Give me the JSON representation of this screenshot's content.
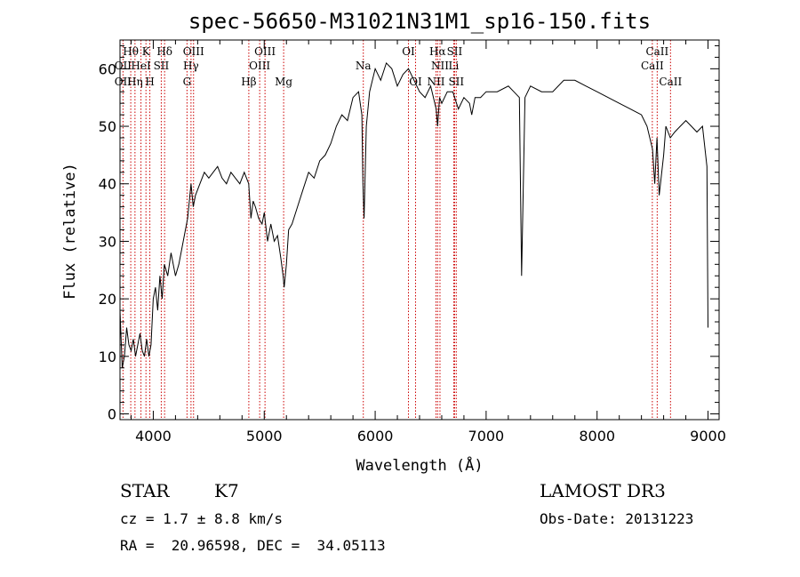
{
  "chart_data": {
    "type": "line",
    "title": "spec-56650-M31021N31M1_sp16-150.fits",
    "xlabel": "Wavelength (Å)",
    "ylabel": "Flux (relative)",
    "xlim": [
      3700,
      9100
    ],
    "ylim": [
      -1,
      65
    ],
    "x_ticks": [
      4000,
      5000,
      6000,
      7000,
      8000,
      9000
    ],
    "y_ticks": [
      0,
      10,
      20,
      30,
      40,
      50,
      60
    ],
    "grid": false,
    "series": [
      {
        "x": [
          3700,
          3720,
          3740,
          3760,
          3780,
          3800,
          3820,
          3840,
          3860,
          3880,
          3900,
          3920,
          3940,
          3960,
          3980,
          4000,
          4020,
          4040,
          4060,
          4080,
          4100,
          4130,
          4160,
          4200,
          4230,
          4260,
          4290,
          4310,
          4340,
          4360,
          4380,
          4420,
          4460,
          4500,
          4540,
          4580,
          4620,
          4660,
          4700,
          4740,
          4780,
          4820,
          4860,
          4880,
          4900,
          4920,
          4950,
          4980,
          5000,
          5030,
          5060,
          5090,
          5120,
          5150,
          5170,
          5180,
          5200,
          5220,
          5250,
          5300,
          5350,
          5400,
          5450,
          5500,
          5550,
          5600,
          5650,
          5700,
          5750,
          5800,
          5850,
          5880,
          5890,
          5900,
          5920,
          5950,
          6000,
          6050,
          6100,
          6150,
          6200,
          6250,
          6300,
          6350,
          6400,
          6450,
          6500,
          6550,
          6563,
          6580,
          6600,
          6650,
          6700,
          6750,
          6800,
          6850,
          6870,
          6900,
          6950,
          7000,
          7100,
          7200,
          7250,
          7300,
          7320,
          7350,
          7400,
          7500,
          7600,
          7700,
          7800,
          7900,
          8000,
          8100,
          8200,
          8300,
          8400,
          8450,
          8500,
          8520,
          8540,
          8560,
          8600,
          8620,
          8660,
          8700,
          8750,
          8800,
          8850,
          8900,
          8950,
          8990,
          9000
        ],
        "y": [
          18,
          8,
          10,
          15,
          12,
          11,
          13,
          10,
          12,
          14,
          11,
          10,
          13,
          10,
          12,
          20,
          22,
          18,
          24,
          20,
          26,
          24,
          28,
          24,
          26,
          29,
          32,
          34,
          40,
          36,
          38,
          40,
          42,
          41,
          42,
          43,
          41,
          40,
          42,
          41,
          40,
          42,
          40,
          34,
          37,
          36,
          34,
          33,
          35,
          30,
          33,
          30,
          31,
          27,
          24,
          22,
          26,
          32,
          33,
          36,
          39,
          42,
          41,
          44,
          45,
          47,
          50,
          52,
          51,
          55,
          56,
          52,
          40,
          34,
          50,
          56,
          60,
          58,
          61,
          60,
          57,
          59,
          60,
          58,
          56,
          55,
          57,
          53,
          50,
          55,
          54,
          56,
          56,
          53,
          55,
          54,
          52,
          55,
          55,
          56,
          56,
          57,
          56,
          55,
          24,
          55,
          57,
          56,
          56,
          58,
          58,
          57,
          56,
          55,
          54,
          53,
          52,
          50,
          46,
          40,
          48,
          38,
          45,
          50,
          48,
          49,
          50,
          51,
          50,
          49,
          50,
          43,
          15
        ]
      }
    ],
    "lines": [
      {
        "label": "Hθ",
        "x": 3797,
        "row": 0
      },
      {
        "label": "K",
        "x": 3934,
        "row": 0
      },
      {
        "label": "Hδ",
        "x": 4102,
        "row": 0
      },
      {
        "label": "OIII",
        "x": 4363,
        "row": 0
      },
      {
        "label": "OIII",
        "x": 5007,
        "row": 0
      },
      {
        "label": "OI",
        "x": 6300,
        "row": 0
      },
      {
        "label": "Hα",
        "x": 6563,
        "row": 0
      },
      {
        "label": "SII",
        "x": 6716,
        "row": 0
      },
      {
        "label": "CaII",
        "x": 8542,
        "row": 0
      },
      {
        "label": "OII",
        "x": 3727,
        "row": 1
      },
      {
        "label": "HeI",
        "x": 3889,
        "row": 1
      },
      {
        "label": "SII",
        "x": 4072,
        "row": 1
      },
      {
        "label": "Hγ",
        "x": 4340,
        "row": 1
      },
      {
        "label": "OIII",
        "x": 4959,
        "row": 1
      },
      {
        "label": "Na",
        "x": 5893,
        "row": 1
      },
      {
        "label": "NII",
        "x": 6584,
        "row": 1
      },
      {
        "label": "Li",
        "x": 6708,
        "row": 1
      },
      {
        "label": "CaII",
        "x": 8498,
        "row": 1
      },
      {
        "label": "OII",
        "x": 3727,
        "row": 2
      },
      {
        "label": "Hη",
        "x": 3835,
        "row": 2
      },
      {
        "label": "H",
        "x": 3969,
        "row": 2
      },
      {
        "label": "G",
        "x": 4304,
        "row": 2
      },
      {
        "label": "Hβ",
        "x": 4861,
        "row": 2
      },
      {
        "label": "Mg",
        "x": 5175,
        "row": 2
      },
      {
        "label": "OI",
        "x": 6364,
        "row": 2
      },
      {
        "label": "NII",
        "x": 6548,
        "row": 2
      },
      {
        "label": "SII",
        "x": 6731,
        "row": 2
      },
      {
        "label": "CaII",
        "x": 8662,
        "row": 2
      }
    ]
  },
  "info": {
    "class": "STAR",
    "subclass": "K7",
    "cz": "cz = 1.7 ± 8.8 km/s",
    "coords": "RA =  20.96598, DEC =  34.05113",
    "survey": "LAMOST DR3",
    "obsdate": "Obs-Date: 20131223"
  }
}
